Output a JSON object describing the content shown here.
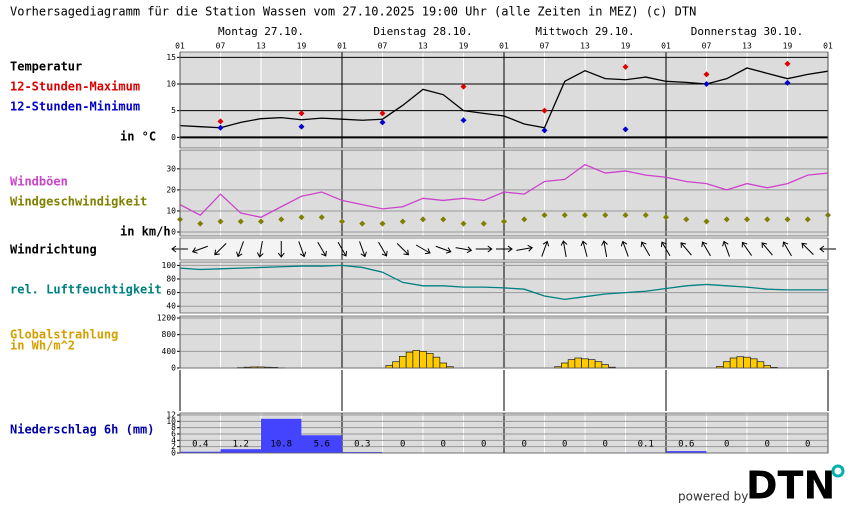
{
  "title": "Vorhersagediagramm für die Station Wassen vom 27.10.2025 19:00 Uhr (alle Zeiten in MEZ)   (c) DTN",
  "footer": {
    "powered": "powered by",
    "logo": "DTN"
  },
  "chart_data": [
    {
      "type": "line",
      "xlim": [
        "27.10. 01",
        "31.10. 01"
      ],
      "xticks": [
        {
          "value": "27.10. 01",
          "label": "01"
        },
        {
          "value": "27.10. 07",
          "label": "07"
        },
        {
          "value": "27.10. 13",
          "label": "13"
        },
        {
          "value": "27.10. 19",
          "label": "19"
        },
        {
          "value": "28.10. 01",
          "label": "01"
        },
        {
          "value": "28.10. 07",
          "label": "07"
        },
        {
          "value": "28.10. 13",
          "label": "13"
        },
        {
          "value": "28.10. 19",
          "label": "19"
        },
        {
          "value": "29.10. 01",
          "label": "01"
        },
        {
          "value": "29.10. 07",
          "label": "07"
        },
        {
          "value": "29.10. 13",
          "label": "13"
        },
        {
          "value": "29.10. 19",
          "label": "19"
        },
        {
          "value": "30.10. 01",
          "label": "01"
        },
        {
          "value": "30.10. 07",
          "label": "07"
        },
        {
          "value": "30.10. 13",
          "label": "13"
        },
        {
          "value": "30.10. 19",
          "label": "19"
        },
        {
          "value": "31.10. 01",
          "label": "01"
        }
      ],
      "day_labels": [
        {
          "value": "27.10. 13",
          "label": "Montag 27.10."
        },
        {
          "value": "28.10. 13",
          "label": "Dienstag 28.10."
        },
        {
          "value": "29.10. 13",
          "label": "Mittwoch 29.10."
        },
        {
          "value": "30.10. 13",
          "label": "Donnerstag 30.10."
        }
      ],
      "x": [
        "27.10. 01",
        "27.10. 04",
        "27.10. 07",
        "27.10. 10",
        "27.10. 13",
        "27.10. 16",
        "27.10. 19",
        "27.10. 22",
        "28.10. 01",
        "28.10. 04",
        "28.10. 07",
        "28.10. 10",
        "28.10. 13",
        "28.10. 16",
        "28.10. 19",
        "28.10. 22",
        "29.10. 01",
        "29.10. 04",
        "29.10. 07",
        "29.10. 10",
        "29.10. 13",
        "29.10. 16",
        "29.10. 19",
        "29.10. 22",
        "30.10. 01",
        "30.10. 04",
        "30.10. 07",
        "30.10. 10",
        "30.10. 13",
        "30.10. 16",
        "30.10. 19",
        "30.10. 22",
        "31.10. 01"
      ],
      "ylim": [
        -2,
        16
      ],
      "yticks": [
        0,
        5,
        10,
        15
      ],
      "grid": true,
      "y_label": "in °C",
      "series": [
        {
          "name": "Temperatur",
          "color": "#000000",
          "style": "line",
          "values": [
            2.2,
            2.0,
            1.8,
            2.8,
            3.5,
            3.7,
            3.3,
            3.6,
            3.4,
            3.2,
            3.4,
            6.0,
            9.0,
            8.0,
            5.0,
            4.5,
            4.0,
            2.5,
            1.8,
            10.5,
            12.5,
            11.0,
            10.8,
            11.3,
            10.5,
            10.3,
            10.0,
            11.0,
            13.0,
            12.0,
            11.0,
            11.8,
            12.4
          ]
        },
        {
          "name": "12-Stunden-Maximum",
          "color": "#dd0000",
          "style": "diamond",
          "x": [
            "27.10. 07",
            "27.10. 19",
            "28.10. 07",
            "28.10. 19",
            "29.10. 07",
            "29.10. 19",
            "30.10. 07",
            "30.10. 19"
          ],
          "values": [
            3.0,
            4.5,
            4.5,
            9.5,
            5.0,
            13.2,
            11.8,
            13.8
          ]
        },
        {
          "name": "12-Stunden-Minimum",
          "color": "#0000cc",
          "style": "diamond",
          "x": [
            "27.10. 07",
            "27.10. 19",
            "28.10. 07",
            "28.10. 19",
            "29.10. 07",
            "29.10. 19",
            "30.10. 07",
            "30.10. 19"
          ],
          "values": [
            1.8,
            2.0,
            2.8,
            3.2,
            1.3,
            1.5,
            10.0,
            10.2
          ]
        }
      ]
    },
    {
      "type": "line",
      "xlim": [
        "27.10. 01",
        "31.10. 01"
      ],
      "x": [
        "27.10. 01",
        "27.10. 04",
        "27.10. 07",
        "27.10. 10",
        "27.10. 13",
        "27.10. 16",
        "27.10. 19",
        "27.10. 22",
        "28.10. 01",
        "28.10. 04",
        "28.10. 07",
        "28.10. 10",
        "28.10. 13",
        "28.10. 16",
        "28.10. 19",
        "28.10. 22",
        "29.10. 01",
        "29.10. 04",
        "29.10. 07",
        "29.10. 10",
        "29.10. 13",
        "29.10. 16",
        "29.10. 19",
        "29.10. 22",
        "30.10. 01",
        "30.10. 04",
        "30.10. 07",
        "30.10. 10",
        "30.10. 13",
        "30.10. 16",
        "30.10. 19",
        "30.10. 22",
        "31.10. 01"
      ],
      "ylim": [
        0,
        38
      ],
      "yticks": [
        0,
        10,
        20,
        30
      ],
      "grid": true,
      "y_label": "in km/h",
      "series": [
        {
          "name": "Windböen",
          "color": "#cc44cc",
          "style": "line",
          "values": [
            13,
            8,
            18,
            9,
            7,
            12,
            17,
            19,
            15,
            13,
            11,
            12,
            16,
            15,
            16,
            15,
            19,
            18,
            24,
            25,
            32,
            28,
            29,
            27,
            26,
            24,
            23,
            20,
            23,
            21,
            23,
            27,
            28
          ]
        },
        {
          "name": "Windgeschwindigkeit",
          "color": "#808000",
          "style": "diamond",
          "values": [
            6,
            4,
            5,
            5,
            5,
            6,
            7,
            7,
            5,
            4,
            4,
            5,
            6,
            6,
            4,
            4,
            5,
            6,
            8,
            8,
            8,
            8,
            8,
            8,
            7,
            6,
            5,
            6,
            6,
            6,
            6,
            6,
            8
          ]
        }
      ]
    },
    {
      "type": "arrows",
      "name": "Windrichtung",
      "xlim": [
        "27.10. 01",
        "31.10. 01"
      ],
      "x": [
        "27.10. 01",
        "27.10. 04",
        "27.10. 07",
        "27.10. 10",
        "27.10. 13",
        "27.10. 16",
        "27.10. 19",
        "27.10. 22",
        "28.10. 01",
        "28.10. 04",
        "28.10. 07",
        "28.10. 10",
        "28.10. 13",
        "28.10. 16",
        "28.10. 19",
        "28.10. 22",
        "29.10. 01",
        "29.10. 04",
        "29.10. 07",
        "29.10. 10",
        "29.10. 13",
        "29.10. 16",
        "29.10. 19",
        "29.10. 22",
        "30.10. 01",
        "30.10. 04",
        "30.10. 07",
        "30.10. 10",
        "30.10. 13",
        "30.10. 16",
        "30.10. 19",
        "30.10. 22",
        "31.10. 01"
      ],
      "values": [
        90,
        70,
        45,
        20,
        10,
        0,
        340,
        330,
        330,
        340,
        330,
        315,
        300,
        290,
        280,
        270,
        270,
        260,
        200,
        170,
        165,
        170,
        160,
        150,
        150,
        140,
        150,
        160,
        145,
        140,
        150,
        135,
        90
      ]
    },
    {
      "type": "line",
      "xlim": [
        "27.10. 01",
        "31.10. 01"
      ],
      "x": [
        "27.10. 01",
        "27.10. 04",
        "27.10. 07",
        "27.10. 10",
        "27.10. 13",
        "27.10. 16",
        "27.10. 19",
        "27.10. 22",
        "28.10. 01",
        "28.10. 04",
        "28.10. 07",
        "28.10. 10",
        "28.10. 13",
        "28.10. 16",
        "28.10. 19",
        "28.10. 22",
        "29.10. 01",
        "29.10. 04",
        "29.10. 07",
        "29.10. 10",
        "29.10. 13",
        "29.10. 16",
        "29.10. 19",
        "29.10. 22",
        "30.10. 01",
        "30.10. 04",
        "30.10. 07",
        "30.10. 10",
        "30.10. 13",
        "30.10. 16",
        "30.10. 19",
        "30.10. 22",
        "31.10. 01"
      ],
      "ylim": [
        30,
        105
      ],
      "yticks": [
        40,
        60,
        80,
        100
      ],
      "grid": true,
      "series": [
        {
          "name": "rel. Luftfeuchtigkeit",
          "color": "#008080",
          "style": "line",
          "values": [
            96,
            94,
            95,
            96,
            97,
            98,
            99,
            99,
            100,
            97,
            90,
            75,
            70,
            70,
            68,
            68,
            67,
            65,
            55,
            50,
            54,
            58,
            60,
            62,
            66,
            70,
            72,
            70,
            68,
            65,
            64,
            64,
            64
          ]
        }
      ]
    },
    {
      "type": "bar",
      "name": "Globalstrahlung",
      "y_label": "in Wh/m^2",
      "color": "#ffcc00",
      "xlim": [
        "27.10. 01",
        "31.10. 01"
      ],
      "x": [
        "27.10. 10",
        "27.10. 11",
        "27.10. 12",
        "27.10. 13",
        "27.10. 14",
        "27.10. 15",
        "27.10. 16",
        "28.10. 08",
        "28.10. 09",
        "28.10. 10",
        "28.10. 11",
        "28.10. 12",
        "28.10. 13",
        "28.10. 14",
        "28.10. 15",
        "28.10. 16",
        "28.10. 17",
        "29.10. 09",
        "29.10. 10",
        "29.10. 11",
        "29.10. 12",
        "29.10. 13",
        "29.10. 14",
        "29.10. 15",
        "29.10. 16",
        "29.10. 17",
        "30.10. 09",
        "30.10. 10",
        "30.10. 11",
        "30.10. 12",
        "30.10. 13",
        "30.10. 14",
        "30.10. 15",
        "30.10. 16",
        "30.10. 17"
      ],
      "values": [
        10,
        20,
        25,
        25,
        20,
        15,
        5,
        60,
        150,
        280,
        380,
        420,
        400,
        350,
        260,
        120,
        30,
        30,
        120,
        200,
        240,
        220,
        200,
        150,
        80,
        20,
        40,
        150,
        240,
        270,
        260,
        220,
        150,
        60,
        15
      ],
      "ylim": [
        0,
        1200
      ],
      "yticks": [
        0,
        400,
        800,
        1200
      ],
      "grid": true
    },
    {
      "type": "histogram",
      "title": "Niederschlag 6h (mm)",
      "color": "#4444ff",
      "xlim": [
        "27.10. 01",
        "31.10. 01"
      ],
      "bins": [
        "27.10. 01",
        "27.10. 07",
        "27.10. 13",
        "27.10. 19",
        "28.10. 01",
        "28.10. 07",
        "28.10. 13",
        "28.10. 19",
        "29.10. 01",
        "29.10. 07",
        "29.10. 13",
        "29.10. 19",
        "30.10. 01",
        "30.10. 07",
        "30.10. 13",
        "30.10. 19",
        "31.10. 01"
      ],
      "values": [
        0.4,
        1.2,
        10.8,
        5.6,
        0.3,
        0,
        0,
        0,
        0,
        0,
        0,
        0.1,
        0.6,
        0,
        0,
        0
      ],
      "ylim": [
        0,
        12
      ],
      "yticks": [
        0,
        2,
        4,
        6,
        8,
        10,
        12
      ],
      "grid": true
    }
  ]
}
